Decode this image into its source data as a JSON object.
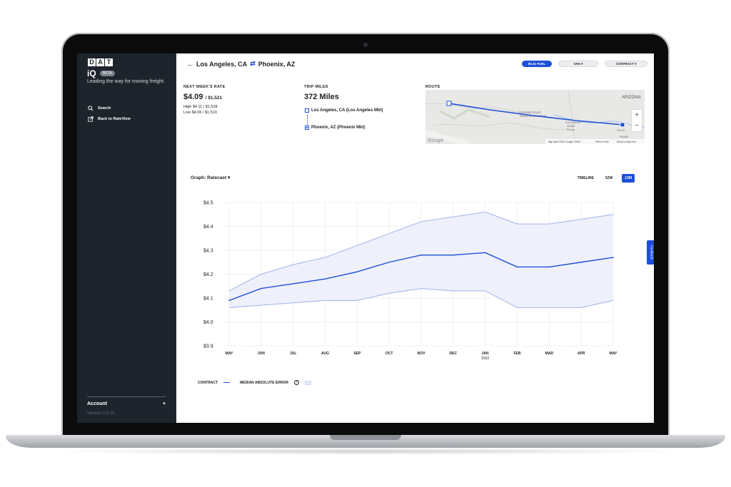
{
  "sidebar": {
    "logo_letters": [
      "D",
      "A",
      "T"
    ],
    "app_name": "iQ",
    "badge": "BETA",
    "tagline": "Leading the way for moving freight.",
    "nav": [
      {
        "label": "Search",
        "icon": "search-icon"
      },
      {
        "label": "Back to RateView",
        "icon": "external-link-icon"
      }
    ],
    "account_label": "Account",
    "account_action": "+",
    "version": "Version 0.0.13"
  },
  "header": {
    "origin": "Los Angeles, CA",
    "destination": "Phoenix, AZ",
    "fuel_label": "$0.31 FUEL",
    "equipment_label": "VAN",
    "rate_type_label": "CONTRACT"
  },
  "rate": {
    "title": "NEXT WEEK'S RATE",
    "per_mile": "$4.09",
    "total": "/ $1,521",
    "high": "High $4.11 / $1,528",
    "low": "Low $4.06 / $1,510"
  },
  "trip": {
    "title": "TRIP MILES",
    "miles": "372 Miles",
    "origin_point": "Los Angeles, CA (Los Angeles Mkt)",
    "dest_point": "Phoenix, AZ (Phoenix Mkt)"
  },
  "route": {
    "title": "ROUTE",
    "labels": [
      "ARIZONA",
      "COLORADO RIVER",
      "INDIAN RESERVATION",
      "Kofa National",
      "Wildlife",
      "Refuge",
      "GILA R",
      "INDIAN"
    ],
    "google": "Google",
    "attribution": "Map data ©2021 Google, INEGI",
    "terms": "Terms of Use",
    "report": "Report a map error",
    "zoom_in": "+",
    "zoom_out": "−"
  },
  "graph": {
    "title": "Graph: Ratecast",
    "toggles": [
      "TIMELINE",
      "52W",
      "13M"
    ],
    "active_toggle": "13M",
    "legend_contract": "CONTRACT",
    "legend_error": "MEDIAN ABSOLUTE ERROR"
  },
  "feedback_label": "Feedback",
  "colors": {
    "accent": "#1d4fd7",
    "band": "#eef1fb",
    "band_edge": "#9fb2e8",
    "sidebar": "#1e242c"
  },
  "chart_data": {
    "type": "line",
    "categories": [
      "MAY",
      "JUN",
      "JUL",
      "AUG",
      "SEP",
      "OCT",
      "NOV",
      "DEC",
      "JAN",
      "FEB",
      "MAR",
      "APR",
      "MAY"
    ],
    "category_sublabels": [
      "",
      "",
      "",
      "",
      "",
      "",
      "",
      "",
      "2022",
      "",
      "",
      "",
      ""
    ],
    "series": [
      {
        "name": "CONTRACT",
        "values": [
          4.09,
          4.14,
          4.16,
          4.18,
          4.21,
          4.25,
          4.28,
          4.28,
          4.29,
          4.23,
          4.23,
          4.25,
          4.27
        ]
      },
      {
        "name": "upper",
        "values": [
          4.13,
          4.2,
          4.24,
          4.27,
          4.32,
          4.37,
          4.42,
          4.44,
          4.46,
          4.41,
          4.41,
          4.43,
          4.45
        ]
      },
      {
        "name": "lower",
        "values": [
          4.06,
          4.07,
          4.08,
          4.09,
          4.09,
          4.12,
          4.14,
          4.13,
          4.13,
          4.06,
          4.06,
          4.06,
          4.09
        ]
      }
    ],
    "y_ticks": [
      "$4.5",
      "$4.4",
      "$4.3",
      "$4.2",
      "$4.1",
      "$4.0",
      "$3.9"
    ],
    "ylim": [
      3.9,
      4.5
    ],
    "grid": true
  }
}
